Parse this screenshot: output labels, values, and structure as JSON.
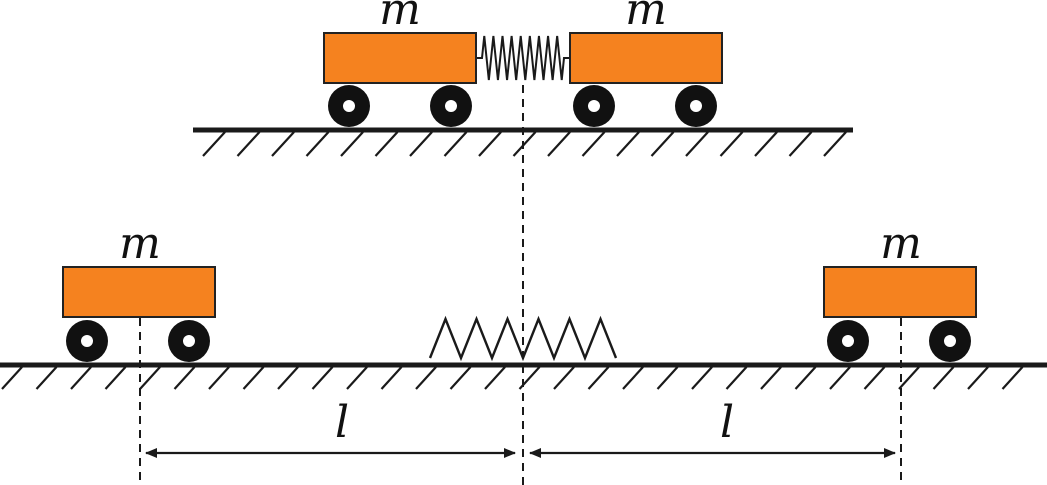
{
  "labels": {
    "mass_top_left": "m",
    "mass_top_right": "m",
    "mass_bottom_left": "m",
    "mass_bottom_right": "m",
    "distance_left": "l",
    "distance_right": "l"
  },
  "colors": {
    "cart_fill": "#f5821f",
    "line": "#1a1a1a",
    "wheel_outer": "#111111",
    "wheel_hub": "#ffffff"
  }
}
